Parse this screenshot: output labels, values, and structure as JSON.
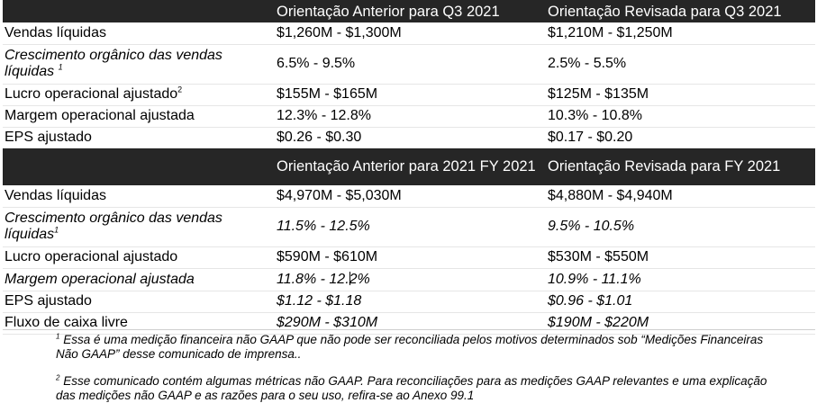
{
  "q3": {
    "header": {
      "col1": "",
      "col2": "Orientação Anterior para Q3 2021",
      "col3": "Orientação Revisada para Q3 2021"
    },
    "rows": [
      {
        "label": "Vendas líquidas",
        "sup": "",
        "prior": "$1,260M - $1,300M",
        "revised": "$1,210M - $1,250M"
      },
      {
        "label": "Crescimento orgânico das vendas líquidas",
        "sup": "1",
        "prior": "6.5% - 9.5%",
        "revised": "2.5% - 5.5%"
      },
      {
        "label": "Lucro operacional ajustado",
        "sup": "2",
        "prior": "$155M - $165M",
        "revised": "$125M - $135M"
      },
      {
        "label": "Margem operacional ajustada",
        "sup": "",
        "prior": "12.3% - 12.8%",
        "revised": "10.3% - 10.8%"
      },
      {
        "label": "EPS ajustado",
        "sup": "",
        "prior": "$0.26 - $0.30",
        "revised": "$0.17 - $0.20"
      }
    ]
  },
  "fy": {
    "header": {
      "col1": "",
      "col2": "Orientação Anterior para 2021 FY 2021",
      "col3": "Orientação Revisada para FY 2021"
    },
    "rows": [
      {
        "label": "Vendas líquidas",
        "sup": "",
        "prior": "$4,970M - $5,030M",
        "revised": "$4,880M - $4,940M"
      },
      {
        "label": "Crescimento orgânico das vendas líquidas",
        "sup": "1",
        "prior": "11.5% - 12.5%",
        "revised": "9.5% - 10.5%"
      },
      {
        "label": "Lucro operacional ajustado",
        "sup": "",
        "prior": "$590M - $610M",
        "revised": "$530M - $550M"
      },
      {
        "label": "Margem operacional ajustada",
        "sup": "",
        "prior_a": "11.8% - 12.",
        "prior_b": "2%",
        "revised": "10.9% - 11.1%"
      },
      {
        "label": "EPS ajustado",
        "sup": "",
        "prior": "$1.12 - $1.18",
        "revised": "$0.96 - $1.01"
      },
      {
        "label": "Fluxo de caixa livre",
        "sup": "",
        "prior": "$290M - $310M",
        "revised": "$190M - $220M"
      }
    ]
  },
  "footnotes": {
    "n1_mark": "1",
    "n1_text": " Essa é uma medição financeira não GAAP que não pode ser reconciliada pelos motivos determinados sob “Medições Financeiras Não GAAP” desse comunicado de imprensa..",
    "n2_mark": "2",
    "n2_text": " Esse comunicado contém algumas métricas não GAAP. Para reconciliações para as medições GAAP relevantes e uma explicação das medições não GAAP e as razões para o seu uso, refira-se ao Anexo 99.1"
  }
}
